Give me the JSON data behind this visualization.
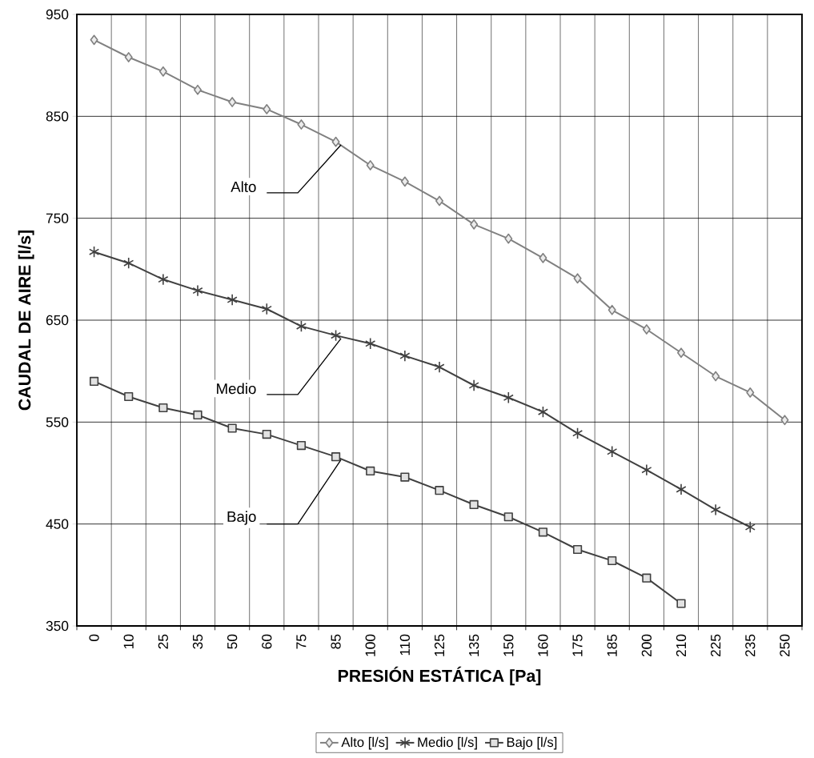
{
  "chart_data": {
    "type": "line",
    "xlabel": "PRESIÓN ESTÁTICA [Pa]",
    "ylabel": "CAUDAL DE AIRE [l/s]",
    "categories": [
      "0",
      "10",
      "25",
      "35",
      "50",
      "60",
      "75",
      "85",
      "100",
      "110",
      "125",
      "135",
      "150",
      "160",
      "175",
      "185",
      "200",
      "210",
      "225",
      "235",
      "250"
    ],
    "series": [
      {
        "name": "Alto [l/s]",
        "color": "#808080",
        "marker": "diamond",
        "values": [
          925,
          908,
          894,
          876,
          864,
          857,
          842,
          825,
          802,
          786,
          767,
          744,
          730,
          711,
          691,
          660,
          641,
          618,
          595,
          579,
          552
        ]
      },
      {
        "name": "Medio [l/s]",
        "color": "#404040",
        "marker": "cross",
        "values": [
          717,
          706,
          690,
          679,
          670,
          661,
          644,
          635,
          627,
          615,
          604,
          586,
          574,
          560,
          539,
          521,
          503,
          484,
          464,
          447,
          null
        ]
      },
      {
        "name": "Bajo [l/s]",
        "color": "#404040",
        "marker": "square",
        "values": [
          590,
          575,
          564,
          557,
          544,
          538,
          527,
          516,
          502,
          496,
          483,
          469,
          457,
          442,
          425,
          414,
          397,
          372,
          null,
          null,
          null
        ]
      }
    ],
    "annotations": [
      {
        "text": "Alto",
        "x": "85",
        "y": 825
      },
      {
        "text": "Medio",
        "x": "85",
        "y": 635
      },
      {
        "text": "Bajo",
        "x": "85",
        "y": 516
      }
    ],
    "ylim": [
      350,
      950
    ],
    "yticks": [
      350,
      450,
      550,
      650,
      750,
      850,
      950
    ],
    "grid": true,
    "legend": "bottom",
    "line_style": "solid"
  }
}
